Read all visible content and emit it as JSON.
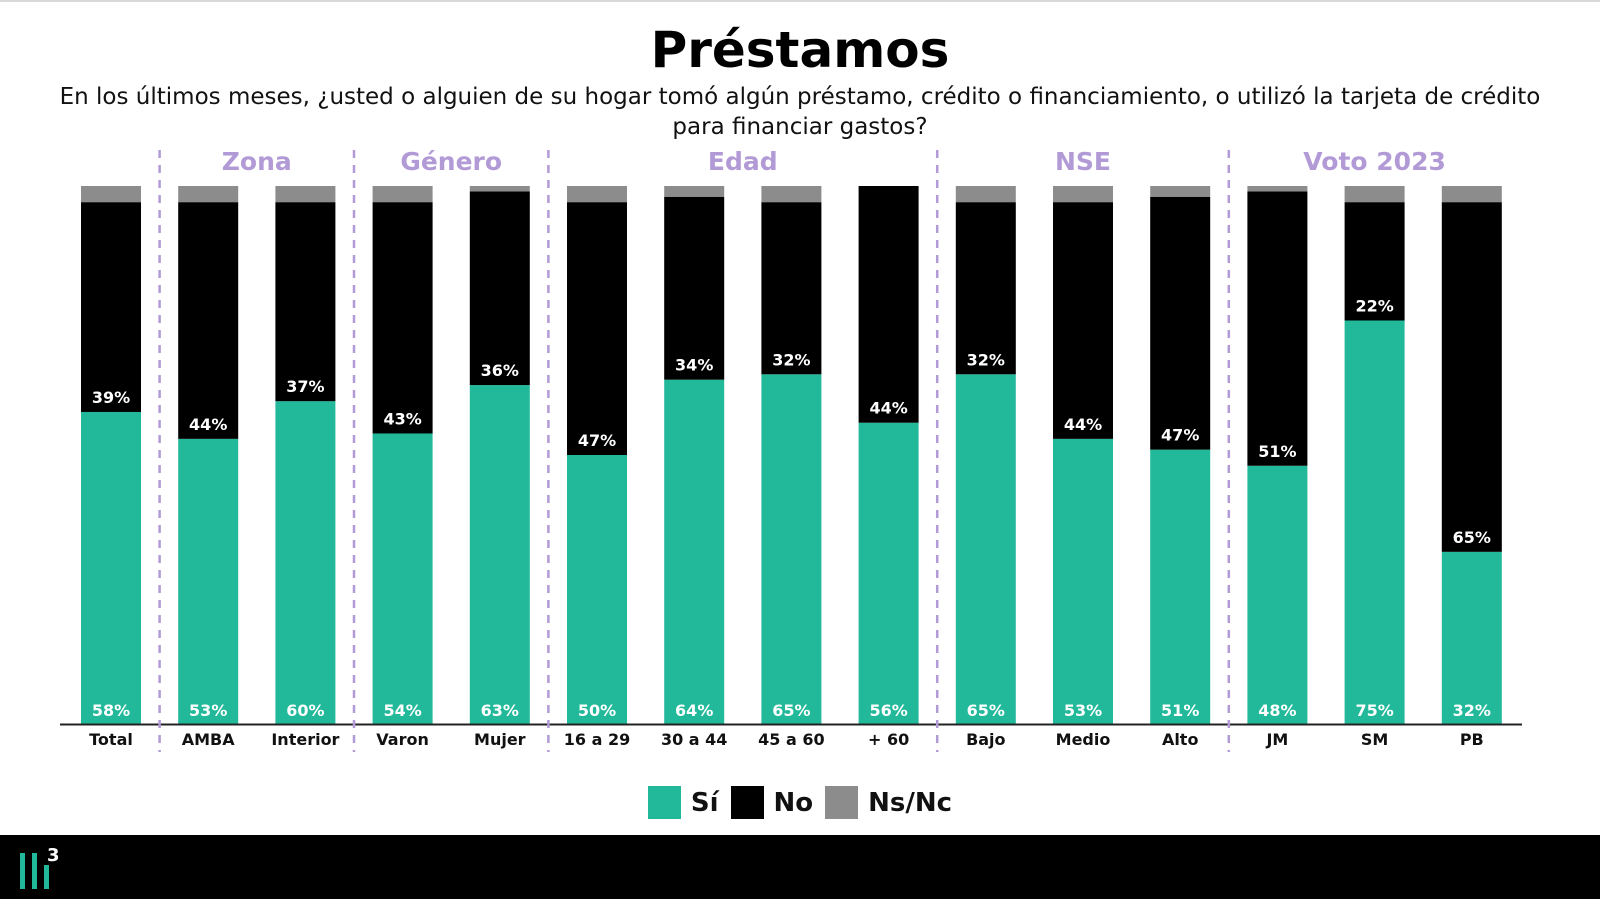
{
  "title": "Préstamos",
  "subtitle": "En los últimos meses, ¿usted o alguien de su hogar tomó algún préstamo, crédito o financiamiento, o utilizó la tarjeta de crédito para financiar gastos?",
  "colors": {
    "si": "#22b99b",
    "no": "#000000",
    "nsnc": "#8c8c8c",
    "group_label": "#b19ad6",
    "divider": "#b19ad6"
  },
  "legend": [
    {
      "label": "Sí",
      "color": "#22b99b"
    },
    {
      "label": "No",
      "color": "#000000"
    },
    {
      "label": "Ns/Nc",
      "color": "#8c8c8c"
    }
  ],
  "footer": {
    "logo_text": "3",
    "logo_icon": "brand-bars-icon"
  },
  "chart_data": {
    "type": "bar",
    "stacked": true,
    "ylim": [
      0,
      100
    ],
    "groups": [
      {
        "label": "",
        "categories": [
          "Total"
        ]
      },
      {
        "label": "Zona",
        "categories": [
          "AMBA",
          "Interior"
        ]
      },
      {
        "label": "Género",
        "categories": [
          "Varon",
          "Mujer"
        ]
      },
      {
        "label": "Edad",
        "categories": [
          "16 a 29",
          "30 a 44",
          "45 a 60",
          "+ 60"
        ]
      },
      {
        "label": "NSE",
        "categories": [
          "Bajo",
          "Medio",
          "Alto"
        ]
      },
      {
        "label": "Voto 2023",
        "categories": [
          "JM",
          "SM",
          "PB"
        ]
      }
    ],
    "categories": [
      "Total",
      "AMBA",
      "Interior",
      "Varon",
      "Mujer",
      "16 a 29",
      "30 a 44",
      "45 a 60",
      "+ 60",
      "Bajo",
      "Medio",
      "Alto",
      "JM",
      "SM",
      "PB"
    ],
    "series": [
      {
        "name": "Sí",
        "values": [
          58,
          53,
          60,
          54,
          63,
          50,
          64,
          65,
          56,
          65,
          53,
          51,
          48,
          75,
          32
        ]
      },
      {
        "name": "No",
        "values": [
          39,
          44,
          37,
          43,
          36,
          47,
          34,
          32,
          44,
          32,
          44,
          47,
          51,
          22,
          65
        ]
      },
      {
        "name": "Ns/Nc",
        "values": [
          3,
          3,
          3,
          3,
          1,
          3,
          2,
          3,
          0,
          3,
          3,
          2,
          1,
          3,
          3
        ]
      }
    ],
    "value_labels": {
      "Sí": [
        "58%",
        "53%",
        "60%",
        "54%",
        "63%",
        "50%",
        "64%",
        "65%",
        "56%",
        "65%",
        "53%",
        "51%",
        "48%",
        "75%",
        "32%"
      ],
      "No": [
        "39%",
        "44%",
        "37%",
        "43%",
        "36%",
        "47%",
        "34%",
        "32%",
        "44%",
        "32%",
        "44%",
        "47%",
        "51%",
        "22%",
        "65%"
      ]
    }
  }
}
